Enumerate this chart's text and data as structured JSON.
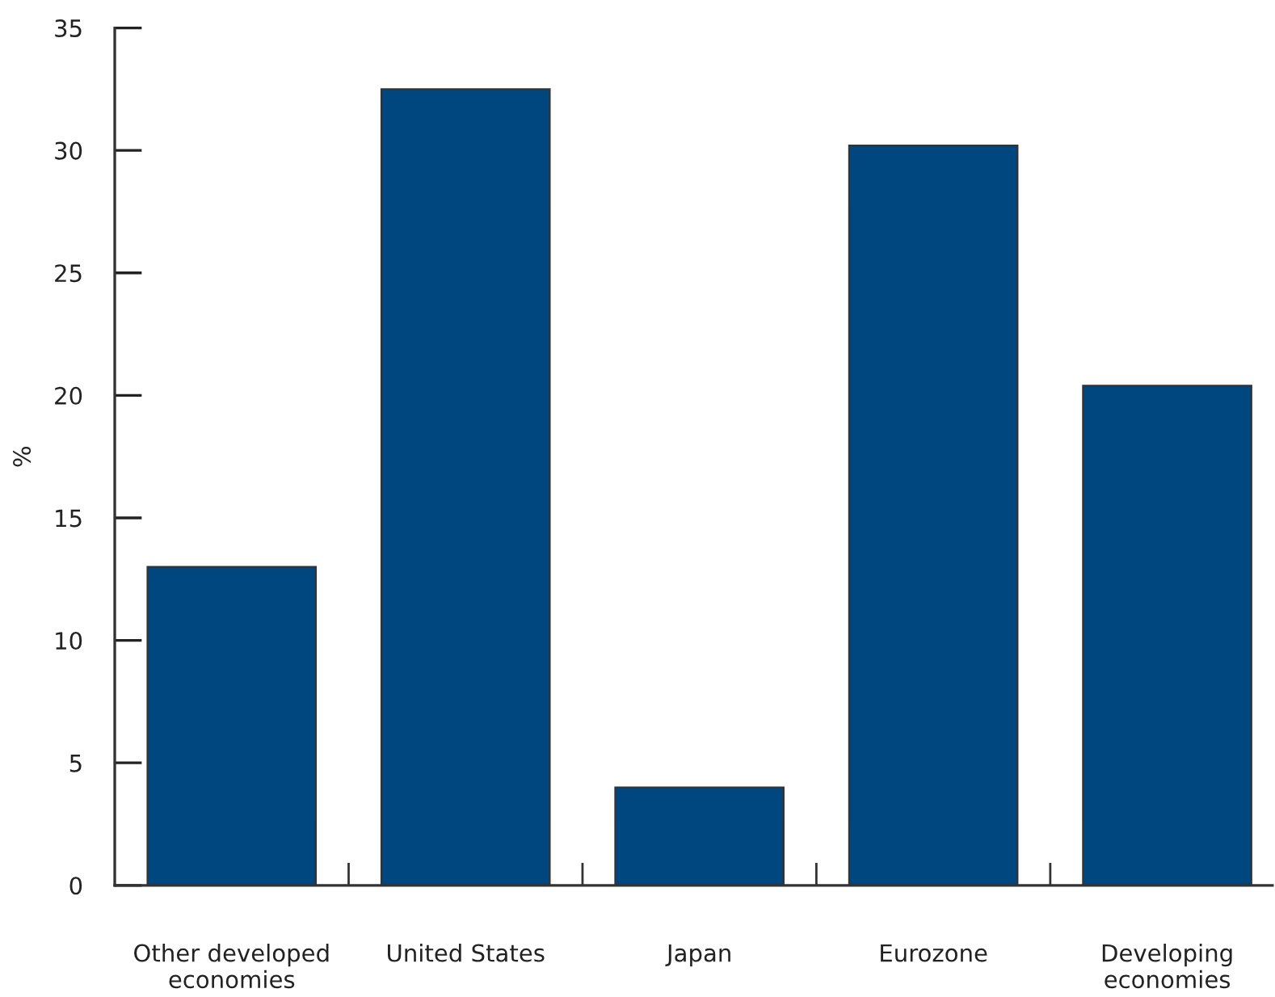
{
  "chart_data": {
    "type": "bar",
    "ylabel": "%",
    "categories": [
      "Other developed\neconomies",
      "United States",
      "Japan",
      "Eurozone",
      "Developing\neconomies"
    ],
    "values": [
      13.0,
      32.5,
      4.0,
      30.2,
      20.4
    ],
    "color": "#00467f",
    "ylim": [
      0,
      35
    ],
    "yticks": [
      0,
      5,
      10,
      15,
      20,
      25,
      30,
      35
    ],
    "grid": false,
    "legend": false
  }
}
